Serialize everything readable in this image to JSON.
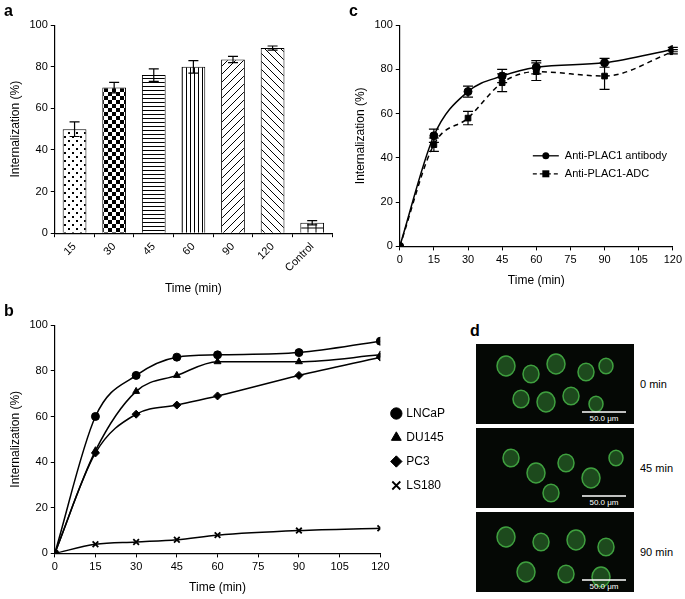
{
  "chart_data": [
    {
      "type": "bar",
      "title": "a",
      "x_label": "Time (min)",
      "y_label": "Internalization (%)",
      "categories": [
        "15",
        "30",
        "45",
        "60",
        "90",
        "120",
        "Control"
      ],
      "values": [
        50,
        70,
        76,
        80,
        83.5,
        89,
        5
      ],
      "errors": [
        3.5,
        2.5,
        3,
        3,
        1.5,
        1,
        1
      ],
      "color": "#ffffff",
      "ylim": [
        0,
        100
      ],
      "yticks": [
        0,
        20,
        40,
        60,
        80,
        100
      ],
      "grid": false
    },
    {
      "type": "line",
      "title": "c",
      "x_label": "Time (min)",
      "y_label": "Internalization (%)",
      "x": [
        0,
        15,
        30,
        45,
        60,
        90,
        120
      ],
      "series": [
        {
          "name": "Anti-PLAC1 antibody",
          "color": "#000000",
          "marker": "circle",
          "line_style": "solid",
          "values": [
            0,
            50,
            70,
            77,
            81,
            83,
            89
          ],
          "errors": [
            0,
            3,
            2.5,
            3,
            3,
            2,
            1
          ]
        },
        {
          "name": "Anti-PLAC1-ADC",
          "color": "#000000",
          "marker": "square",
          "line_style": "dashed",
          "values": [
            0,
            46,
            58,
            74,
            79,
            77,
            88
          ],
          "errors": [
            0,
            3,
            3,
            4,
            4,
            6,
            1
          ]
        }
      ],
      "xlim": [
        0,
        120
      ],
      "xticks": [
        0,
        15,
        30,
        45,
        60,
        75,
        90,
        105,
        120
      ],
      "ylim": [
        0,
        100
      ],
      "yticks": [
        0,
        20,
        40,
        60,
        80,
        100
      ],
      "grid": false,
      "legend": "center right"
    },
    {
      "type": "line",
      "title": "b",
      "x_label": "Time (min)",
      "y_label": "Internalization (%)",
      "x": [
        0,
        15,
        30,
        45,
        60,
        90,
        120
      ],
      "series": [
        {
          "name": "LNCaP",
          "color": "#000000",
          "marker": "circle",
          "line_style": "solid",
          "values": [
            0,
            60,
            78,
            86,
            87,
            88,
            93
          ]
        },
        {
          "name": "DU145",
          "color": "#000000",
          "marker": "triangle",
          "line_style": "solid",
          "values": [
            0,
            45,
            71,
            78,
            84,
            84,
            87
          ]
        },
        {
          "name": "PC3",
          "color": "#000000",
          "marker": "diamond",
          "line_style": "solid",
          "values": [
            0,
            44,
            61,
            65,
            69,
            78,
            86
          ]
        },
        {
          "name": "LS180",
          "color": "#000000",
          "marker": "x",
          "line_style": "solid",
          "values": [
            0,
            4,
            5,
            6,
            8,
            10,
            11
          ]
        }
      ],
      "xlim": [
        0,
        120
      ],
      "xticks": [
        0,
        15,
        30,
        45,
        60,
        75,
        90,
        105,
        120
      ],
      "ylim": [
        0,
        100
      ],
      "yticks": [
        0,
        20,
        40,
        60,
        80,
        100
      ],
      "grid": false,
      "legend": "right"
    }
  ],
  "image_panel": {
    "title": "d",
    "images": [
      {
        "caption": "0 min",
        "scale_bar": "50.0 μm"
      },
      {
        "caption": "45 min",
        "scale_bar": "50.0 μm"
      },
      {
        "caption": "90 min",
        "scale_bar": "50.0 μm"
      }
    ]
  }
}
